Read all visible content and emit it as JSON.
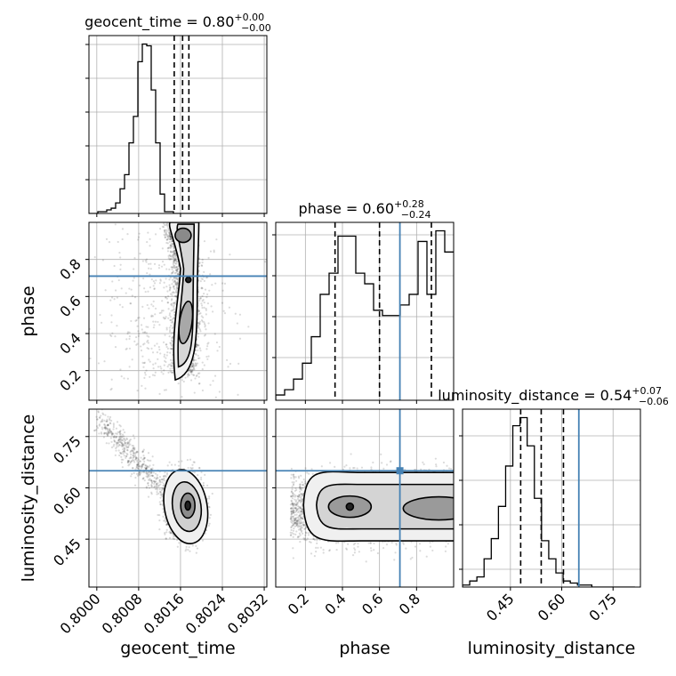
{
  "chart_data": {
    "type": "corner",
    "parameters": [
      "geocent_time",
      "phase",
      "luminosity_distance"
    ],
    "truths": {
      "phase": 0.71,
      "luminosity_distance": 0.65
    },
    "titles": [
      {
        "param": "geocent_time",
        "label": "geocent_time = 0.80",
        "plus": "+0.00",
        "minus": "−0.00"
      },
      {
        "param": "phase",
        "label": "phase = 0.60",
        "plus": "+0.28",
        "minus": "−0.24"
      },
      {
        "param": "luminosity_distance",
        "label": "luminosity_distance = 0.54",
        "plus": "+0.07",
        "minus": "−0.06"
      }
    ],
    "axis_labels": {
      "geocent_time": "geocent_time",
      "phase": "phase",
      "luminosity_distance": "luminosity_distance"
    },
    "ticks": {
      "geocent_time": [
        "0.8000",
        "0.8008",
        "0.8016",
        "0.8024",
        "0.8032"
      ],
      "phase_x": [
        "0.2",
        "0.4",
        "0.6",
        "0.8"
      ],
      "phase_y": [
        "0.2",
        "0.4",
        "0.6",
        "0.8"
      ],
      "luminosity_distance": [
        "0.45",
        "0.60",
        "0.75"
      ]
    },
    "ranges": {
      "geocent_time": [
        0.79985,
        0.80325
      ],
      "phase": [
        0.04,
        1.0
      ],
      "luminosity_distance": [
        0.31,
        0.83
      ]
    },
    "hist_geocent_time": {
      "edges_start": 0.79985,
      "bin_width": 8.5e-05,
      "counts": [
        0,
        0,
        1,
        1,
        2,
        3,
        6,
        14,
        22,
        40,
        55,
        86,
        96,
        95,
        70,
        40,
        11,
        1,
        1,
        0,
        0,
        0,
        0,
        0,
        0,
        0,
        0,
        0,
        0,
        0,
        0,
        0,
        0,
        0,
        0,
        0,
        0,
        0,
        0,
        0
      ],
      "quantiles": [
        0.80148,
        0.80164,
        0.80176
      ]
    },
    "hist_phase": {
      "edges_start": 0.04,
      "bin_width": 0.048,
      "counts": [
        2,
        4,
        8,
        14,
        24,
        40,
        48,
        62,
        62,
        48,
        44,
        34,
        32,
        32,
        36,
        40,
        60,
        40,
        64,
        56
      ],
      "quantiles": [
        0.36,
        0.6,
        0.88
      ]
    },
    "hist_luminosity_distance": {
      "edges_start": 0.31,
      "bin_width": 0.021,
      "counts": [
        1,
        3,
        5,
        14,
        24,
        40,
        60,
        80,
        84,
        70,
        44,
        23,
        14,
        7,
        3,
        2,
        1,
        1,
        0,
        0,
        0,
        0,
        0,
        0
      ],
      "quantiles": [
        0.48,
        0.54,
        0.605
      ]
    },
    "grid": true
  }
}
